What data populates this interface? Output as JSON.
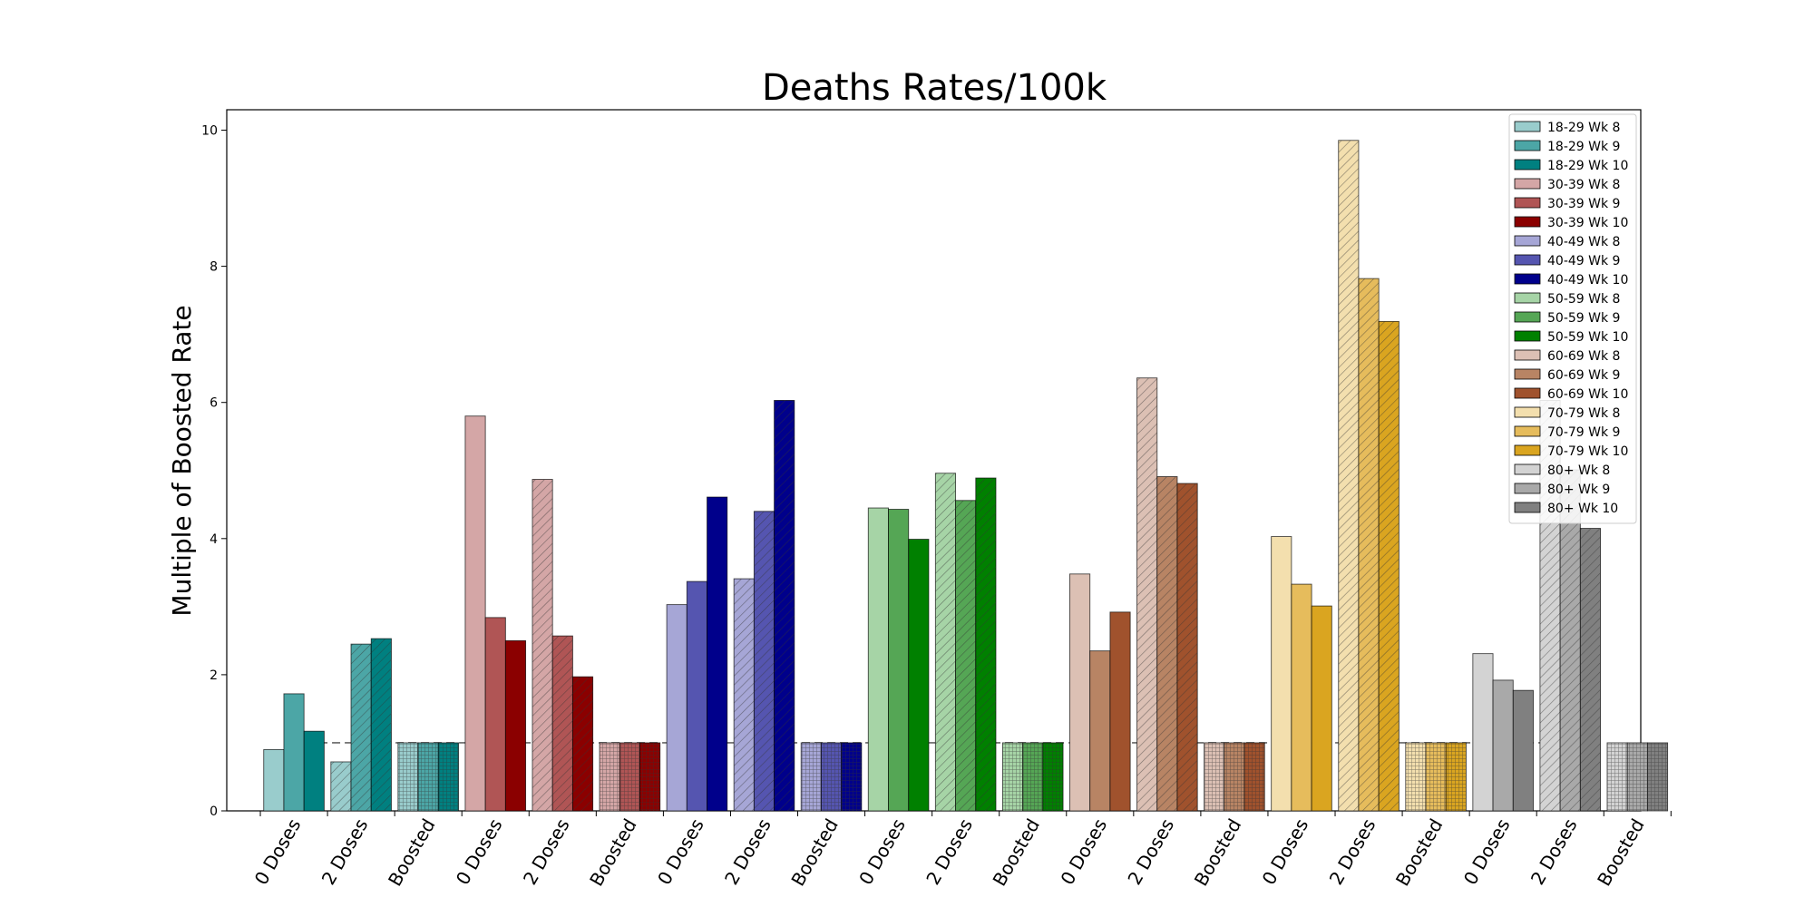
{
  "chart_data": {
    "type": "bar",
    "title": "Deaths Rates/100k",
    "xlabel": "",
    "ylabel": "Multiple of Boosted Rate",
    "ylim": [
      0,
      10.3
    ],
    "yticks": [
      "0",
      "2",
      "4",
      "6",
      "8",
      "10"
    ],
    "categories": [
      "0 Doses",
      "2 Doses",
      "Boosted"
    ],
    "reference_line": 1.0,
    "legend_position": "top-right",
    "grid": false,
    "groups": [
      {
        "age": "18-29",
        "colors": [
          "#99cccc",
          "#4ca6a6",
          "#008080"
        ],
        "series": [
          {
            "name": "18-29 Wk 8",
            "values": [
              0.9,
              0.72,
              1.0
            ]
          },
          {
            "name": "18-29 Wk 9",
            "values": [
              1.72,
              2.45,
              1.0
            ]
          },
          {
            "name": "18-29 Wk 10",
            "values": [
              1.17,
              2.53,
              1.0
            ]
          }
        ]
      },
      {
        "age": "30-39",
        "colors": [
          "#d4a6a6",
          "#b05555",
          "#8b0000"
        ],
        "series": [
          {
            "name": "30-39 Wk 8",
            "values": [
              5.8,
              4.87,
              1.0
            ]
          },
          {
            "name": "30-39 Wk 9",
            "values": [
              2.84,
              2.57,
              1.0
            ]
          },
          {
            "name": "30-39 Wk 10",
            "values": [
              2.5,
              1.97,
              1.0
            ]
          }
        ]
      },
      {
        "age": "40-49",
        "colors": [
          "#a6a6d6",
          "#5555b0",
          "#00008b"
        ],
        "series": [
          {
            "name": "40-49 Wk 8",
            "values": [
              3.03,
              3.41,
              1.0
            ]
          },
          {
            "name": "40-49 Wk 9",
            "values": [
              3.37,
              4.4,
              1.0
            ]
          },
          {
            "name": "40-49 Wk 10",
            "values": [
              4.61,
              6.03,
              1.0
            ]
          }
        ]
      },
      {
        "age": "50-59",
        "colors": [
          "#a6d4a6",
          "#55a655",
          "#008000"
        ],
        "series": [
          {
            "name": "50-59 Wk 8",
            "values": [
              4.45,
              4.96,
              1.0
            ]
          },
          {
            "name": "50-59 Wk 9",
            "values": [
              4.43,
              4.56,
              1.0
            ]
          },
          {
            "name": "50-59 Wk 10",
            "values": [
              3.99,
              4.89,
              1.0
            ]
          }
        ]
      },
      {
        "age": "60-69",
        "colors": [
          "#dcc0b4",
          "#b88464",
          "#a0522d"
        ],
        "series": [
          {
            "name": "60-69 Wk 8",
            "values": [
              3.48,
              6.36,
              1.0
            ]
          },
          {
            "name": "60-69 Wk 9",
            "values": [
              2.35,
              4.91,
              1.0
            ]
          },
          {
            "name": "60-69 Wk 10",
            "values": [
              2.92,
              4.81,
              1.0
            ]
          }
        ]
      },
      {
        "age": "70-79",
        "colors": [
          "#f3dfae",
          "#e6bc5c",
          "#daa520"
        ],
        "series": [
          {
            "name": "70-79 Wk 8",
            "values": [
              4.03,
              9.85,
              1.0
            ]
          },
          {
            "name": "70-79 Wk 9",
            "values": [
              3.33,
              7.82,
              1.0
            ]
          },
          {
            "name": "70-79 Wk 10",
            "values": [
              3.01,
              7.19,
              1.0
            ]
          }
        ]
      },
      {
        "age": "80+",
        "colors": [
          "#d3d3d3",
          "#a9a9a9",
          "#808080"
        ],
        "series": [
          {
            "name": "80+ Wk 8",
            "values": [
              2.31,
              6.03,
              1.0
            ]
          },
          {
            "name": "80+ Wk 9",
            "values": [
              1.92,
              5.01,
              1.0
            ]
          },
          {
            "name": "80+ Wk 10",
            "values": [
              1.77,
              4.15,
              1.0
            ]
          }
        ]
      }
    ]
  }
}
